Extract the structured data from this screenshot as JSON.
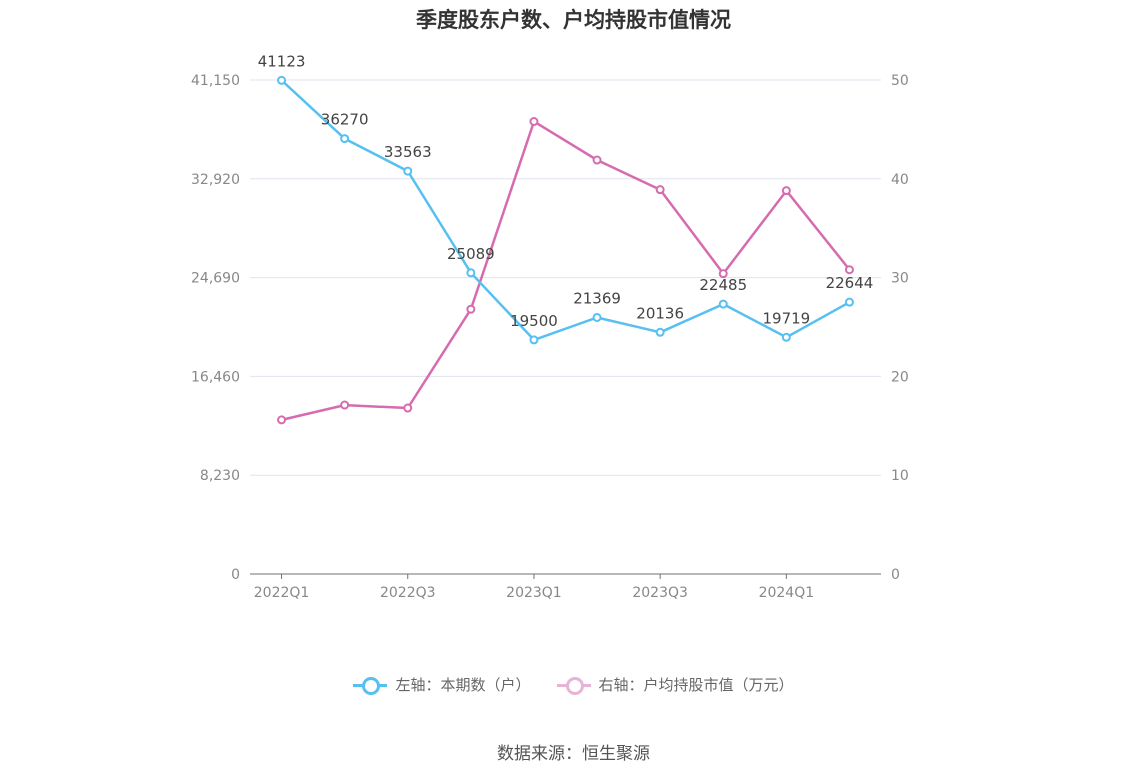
{
  "chart_data": {
    "type": "line",
    "title": "季度股东户数、户均持股市值情况",
    "categories": [
      "2022Q1",
      "2022Q2",
      "2022Q3",
      "2022Q4",
      "2023Q1",
      "2023Q2",
      "2023Q3",
      "2023Q4",
      "2024Q1",
      "2024Q2"
    ],
    "x_tick_labels": [
      "2022Q1",
      "2022Q3",
      "2023Q1",
      "2023Q3",
      "2024Q1"
    ],
    "left_axis": {
      "ticks": [
        "0",
        "8,230",
        "16,460",
        "24,690",
        "32,920",
        "41,150"
      ],
      "ylim": [
        0,
        41150
      ]
    },
    "right_axis": {
      "ticks": [
        "0",
        "10",
        "20",
        "30",
        "40",
        "50"
      ],
      "ylim": [
        0,
        50
      ]
    },
    "series": [
      {
        "name": "左轴：本期数（户）",
        "axis": "left",
        "color": "#56c0f0",
        "values": [
          41123,
          36270,
          33563,
          25089,
          19500,
          21369,
          20136,
          22485,
          19719,
          22644
        ],
        "labels": [
          "41123",
          "36270",
          "33563",
          "25089",
          "19500",
          "21369",
          "20136",
          "22485",
          "19719",
          "22644"
        ]
      },
      {
        "name": "右轴：户均持股市值（万元）",
        "axis": "right",
        "color": "#d56cb0",
        "values": [
          15.6,
          17.1,
          16.8,
          26.8,
          45.8,
          41.9,
          38.9,
          30.4,
          38.8,
          30.8
        ]
      }
    ],
    "grid": true,
    "legend_position": "bottom"
  },
  "source": "数据来源：恒生聚源"
}
